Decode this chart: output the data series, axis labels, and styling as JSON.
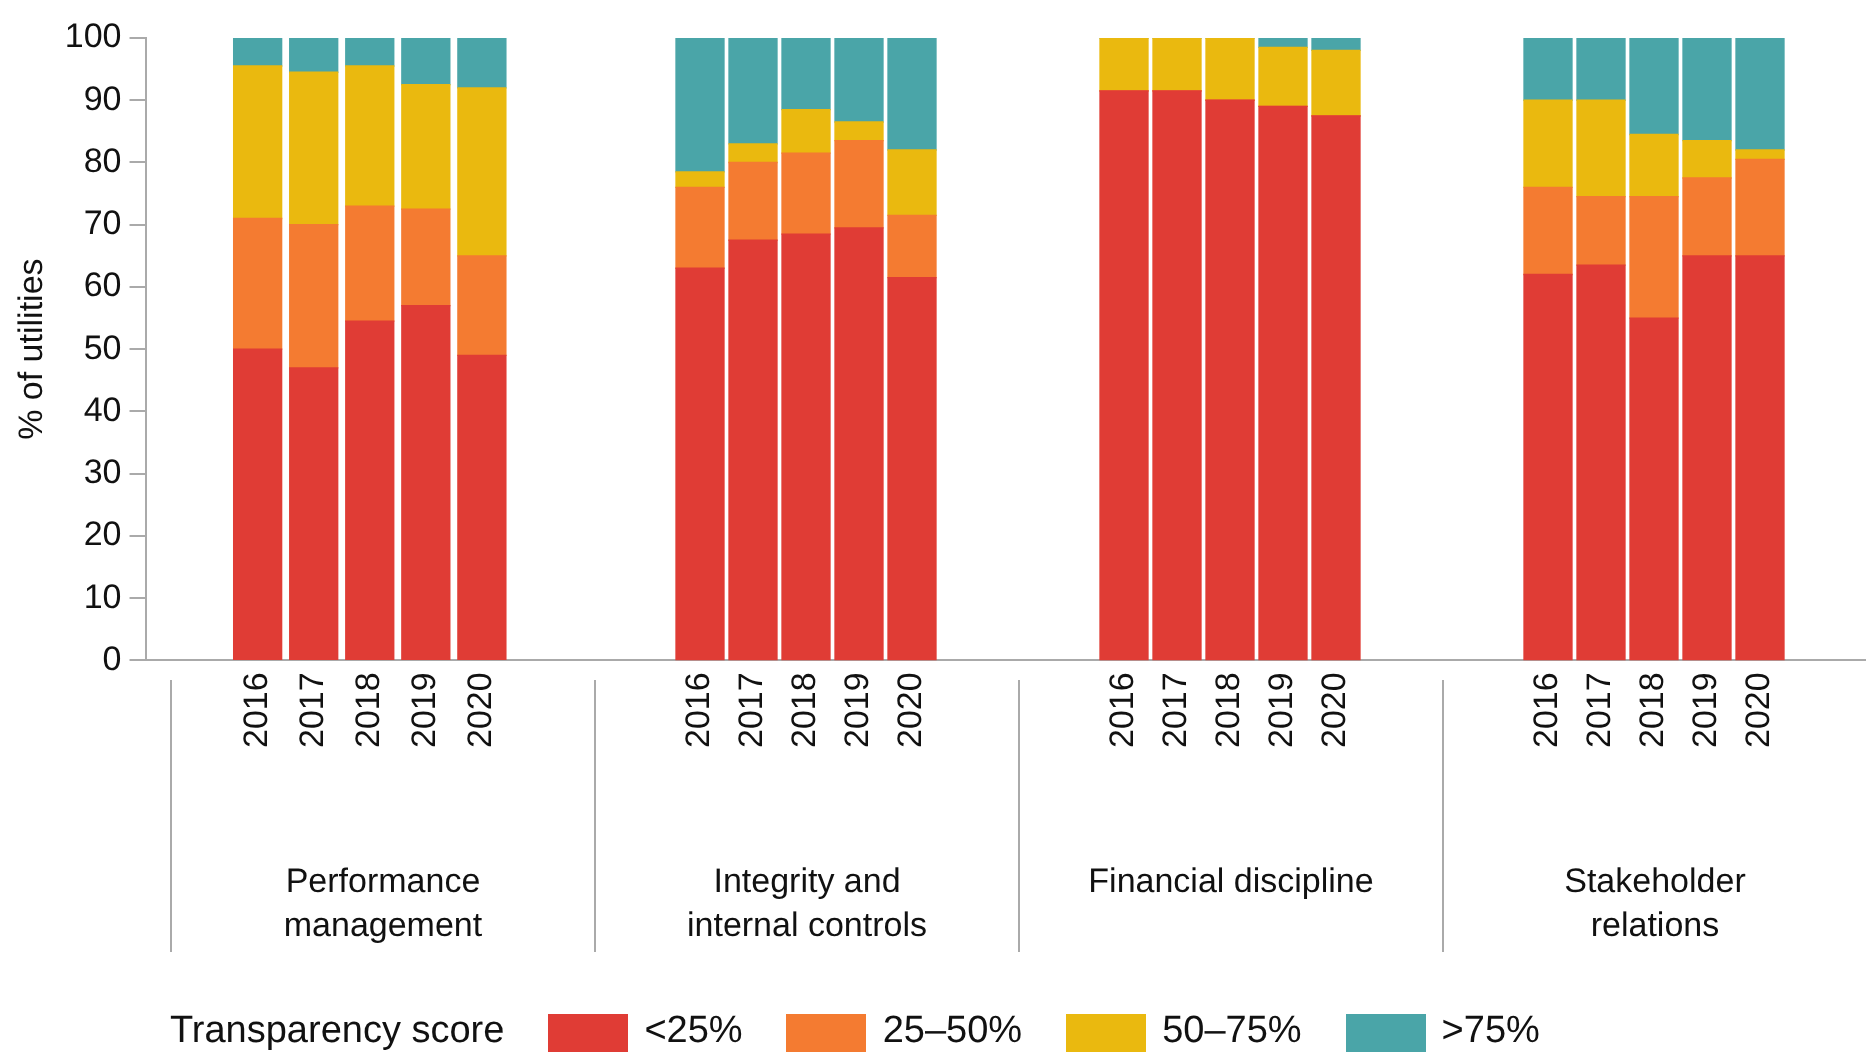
{
  "chart_data": [
    {
      "type": "bar",
      "stacked": true,
      "xlabel": "Performance management",
      "ylabel": "% of utilities",
      "legend": "bottom",
      "legend_title": "Transparency score",
      "categories": [
        "2016",
        "2017",
        "2018",
        "2019",
        "2020"
      ],
      "ylim": [
        0,
        100
      ],
      "yticks": [
        0,
        10,
        20,
        30,
        40,
        50,
        60,
        70,
        80,
        90,
        100
      ],
      "series": [
        {
          "name": "<25%",
          "color": "#e03c35",
          "values": [
            50,
            47,
            54.5,
            57,
            49
          ]
        },
        {
          "name": "25–50%",
          "color": "#f47b31",
          "values": [
            21,
            23,
            18.5,
            15.5,
            16
          ]
        },
        {
          "name": "50–75%",
          "color": "#eab90f",
          "values": [
            24.5,
            24.5,
            22.5,
            20,
            27
          ]
        },
        {
          "name": ">75%",
          "color": "#4aa5a8",
          "values": [
            4.5,
            5.5,
            4.5,
            7.5,
            8
          ]
        }
      ]
    },
    {
      "type": "bar",
      "stacked": true,
      "xlabel": "Integrity and internal controls",
      "tick_labels": "x",
      "categories": [
        "2016",
        "2017",
        "2018",
        "2019",
        "2020"
      ],
      "ylim": [
        0,
        100
      ],
      "yticks": [
        0,
        10,
        20,
        30,
        40,
        50,
        60,
        70,
        80,
        90,
        100
      ],
      "series": [
        {
          "color": "#e03c35",
          "values": [
            63,
            67.5,
            68.5,
            69.5,
            61.5
          ]
        },
        {
          "color": "#f47b31",
          "values": [
            13,
            12.5,
            13,
            14,
            10
          ]
        },
        {
          "color": "#eab90f",
          "values": [
            2.5,
            3,
            7,
            3,
            10.5
          ]
        },
        {
          "color": "#4aa5a8",
          "values": [
            21.5,
            17,
            11.5,
            13.5,
            18
          ]
        }
      ]
    },
    {
      "type": "bar",
      "stacked": true,
      "xlabel": "Financial discipline",
      "tick_labels": "x",
      "categories": [
        "2016",
        "2017",
        "2018",
        "2019",
        "2020"
      ],
      "ylim": [
        0,
        100
      ],
      "yticks": [
        0,
        10,
        20,
        30,
        40,
        50,
        60,
        70,
        80,
        90,
        100
      ],
      "series": [
        {
          "color": "#e03c35",
          "values": [
            91.5,
            91.5,
            90,
            89,
            87.5
          ]
        },
        {
          "color": "#f47b31",
          "values": [
            0,
            0,
            0,
            0,
            0
          ]
        },
        {
          "color": "#eab90f",
          "values": [
            8.5,
            8.5,
            10,
            9.5,
            10.5
          ]
        },
        {
          "color": "#4aa5a8",
          "values": [
            0,
            0,
            0,
            1.5,
            2
          ]
        }
      ]
    },
    {
      "type": "bar",
      "stacked": true,
      "xlabel": "Stakeholder relations",
      "tick_labels": "x",
      "categories": [
        "2016",
        "2017",
        "2018",
        "2019",
        "2020"
      ],
      "ylim": [
        0,
        100
      ],
      "yticks": [
        0,
        10,
        20,
        30,
        40,
        50,
        60,
        70,
        80,
        90,
        100
      ],
      "series": [
        {
          "color": "#e03c35",
          "values": [
            62,
            63.5,
            55,
            65,
            65
          ]
        },
        {
          "color": "#f47b31",
          "values": [
            14,
            11,
            19.5,
            12.5,
            15.5
          ]
        },
        {
          "color": "#eab90f",
          "values": [
            14,
            15.5,
            10,
            6,
            1.5
          ]
        },
        {
          "color": "#4aa5a8",
          "values": [
            10,
            10,
            15.5,
            16.5,
            18
          ]
        }
      ]
    }
  ]
}
